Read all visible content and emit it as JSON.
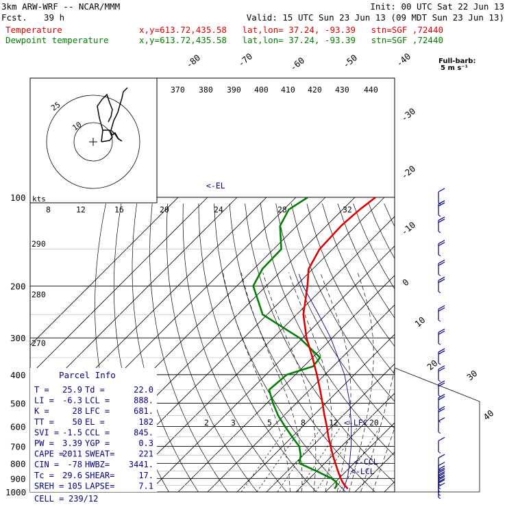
{
  "header": {
    "model": "3km ARW-WRF -- NCAR/MMM",
    "init": "Init: 00 UTC Sat 22 Jun 13",
    "fcst_label": "Fcst.",
    "fcst_value": "39 h",
    "valid": "Valid: 15 UTC Sun 23 Jun 13 (09 MDT Sun 23 Jun 13)",
    "temp_label": "Temperature",
    "dew_label": "Dewpoint temperature",
    "location": "x,y=613.72,435.58   lat,lon= 37.24, -93.39   stn=SGF ,72440",
    "colors": {
      "temperature": "#e00000",
      "dewpoint": "#008000",
      "parcel": "#000080",
      "barbs": "#000080"
    }
  },
  "barb_key": {
    "title": "Full-barb:",
    "value": "5 m s⁻¹"
  },
  "hodograph": {
    "units": "kts",
    "ring_labels": [
      "10",
      "25"
    ]
  },
  "parcel_info": {
    "title": "Parcel Info",
    "rows": [
      [
        "T  =",
        "25.9",
        "Td =",
        "22.0"
      ],
      [
        "LI =",
        "-6.3",
        "LCL =",
        "888."
      ],
      [
        "K  =",
        "28",
        "LFC =",
        "681."
      ],
      [
        "TT =",
        "50",
        "EL =",
        "182"
      ],
      [
        "SVI =",
        "-1.5",
        "CCL =",
        "845."
      ],
      [
        "PW =",
        "3.39",
        "YGP =",
        "0.3"
      ],
      [
        "CAPE =",
        "2011",
        "SWEAT=",
        "221"
      ],
      [
        "CIN =",
        "-78",
        "HWBZ=",
        "3441."
      ],
      [
        "Tc =",
        "29.6",
        "SHEAR=",
        "17."
      ],
      [
        "SREH =",
        "105",
        "LAPSE=",
        "7.1"
      ]
    ],
    "cell_label": "CELL =",
    "cell_value": "239/12"
  },
  "chart_data": {
    "type": "line",
    "diagram": "skew-T log-p",
    "pressure_ticks": [
      100,
      200,
      300,
      400,
      500,
      600,
      700,
      800,
      900,
      1000
    ],
    "pressure_labels": [
      "100",
      "200",
      "300",
      "400",
      "500",
      "600",
      "700",
      "800",
      "900",
      "1000"
    ],
    "isotherm_labels": [
      "-80",
      "-70",
      "-60",
      "-50",
      "-40",
      "-30",
      "-20",
      "-10",
      "0",
      "10",
      "20",
      "30",
      "40"
    ],
    "theta_labels_top": [
      "370",
      "380",
      "390",
      "400",
      "410",
      "420",
      "430",
      "440"
    ],
    "theta_labels_left": [
      "290",
      "280",
      "270"
    ],
    "thetae_labels": [
      "8",
      "12",
      "16",
      "20",
      "24",
      "28",
      "32"
    ],
    "mixing_ratio_labels": [
      "2",
      "3",
      "5",
      "8",
      "12",
      "20"
    ],
    "level_markers": [
      "<-EL",
      "<-LFC",
      "<-CCL",
      "<-LCL"
    ],
    "series": [
      {
        "name": "Temperature",
        "p": [
          975,
          950,
          925,
          900,
          850,
          800,
          750,
          700,
          650,
          600,
          550,
          500,
          450,
          400,
          350,
          300,
          250,
          200,
          175,
          150,
          125,
          110,
          100
        ],
        "t": [
          26.5,
          24.3,
          22.4,
          20.6,
          17.2,
          13.7,
          10.0,
          6.3,
          2.3,
          -1.7,
          -6.3,
          -11.1,
          -16.5,
          -22.7,
          -30.0,
          -38.7,
          -47.7,
          -56.0,
          -61.4,
          -64.4,
          -65.0,
          -64.2,
          -63.0
        ]
      },
      {
        "name": "Dewpoint temperature",
        "p": [
          975,
          950,
          925,
          900,
          850,
          800,
          750,
          700,
          650,
          600,
          550,
          500,
          450,
          400,
          375,
          350,
          300,
          250,
          200,
          175,
          150,
          125,
          110,
          100
        ],
        "t": [
          22.0,
          21.6,
          20.3,
          17.5,
          10.0,
          1.5,
          -0.9,
          -4.4,
          -10.0,
          -15.9,
          -22.0,
          -27.9,
          -33.8,
          -32.9,
          -26.8,
          -27.4,
          -41.1,
          -61.5,
          -74.4,
          -77.1,
          -77.4,
          -85.7,
          -88.3,
          -86.0
        ]
      }
    ],
    "parcel": {
      "p": [
        1000,
        888,
        800,
        700,
        600,
        500,
        400,
        300,
        250,
        200,
        182
      ],
      "t": [
        25.9,
        22.4,
        18.5,
        13.2,
        6.6,
        -1.8,
        -13.3,
        -30.5,
        -42.5,
        -57.5,
        -63.0
      ]
    },
    "wind_barbs": [
      {
        "p": 1000,
        "speed_ms": 5
      },
      {
        "p": 975,
        "speed_ms": 7
      },
      {
        "p": 950,
        "speed_ms": 8
      },
      {
        "p": 925,
        "speed_ms": 9
      },
      {
        "p": 900,
        "speed_ms": 9
      },
      {
        "p": 875,
        "speed_ms": 8
      },
      {
        "p": 850,
        "speed_ms": 7
      },
      {
        "p": 800,
        "speed_ms": 6
      },
      {
        "p": 700,
        "speed_ms": 5
      },
      {
        "p": 600,
        "speed_ms": 6
      },
      {
        "p": 550,
        "speed_ms": 8
      },
      {
        "p": 500,
        "speed_ms": 10
      },
      {
        "p": 450,
        "speed_ms": 11
      },
      {
        "p": 400,
        "speed_ms": 12
      },
      {
        "p": 350,
        "speed_ms": 12
      },
      {
        "p": 300,
        "speed_ms": 12
      },
      {
        "p": 250,
        "speed_ms": 11
      },
      {
        "p": 200,
        "speed_ms": 10
      },
      {
        "p": 175,
        "speed_ms": 11
      },
      {
        "p": 150,
        "speed_ms": 11
      },
      {
        "p": 125,
        "speed_ms": 10
      },
      {
        "p": 110,
        "speed_ms": 8
      },
      {
        "p": 100,
        "speed_ms": 6
      }
    ]
  }
}
